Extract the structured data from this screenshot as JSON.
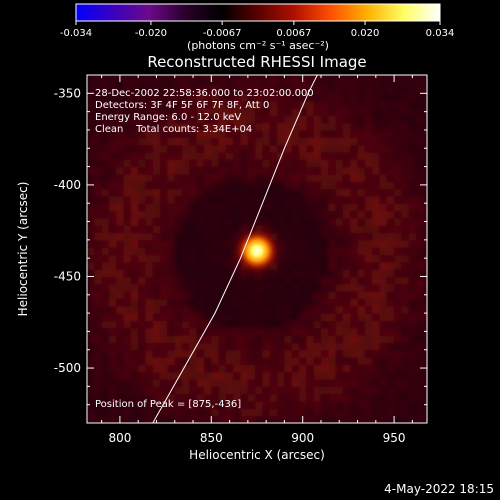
{
  "chart_data": {
    "type": "heatmap",
    "title": "Reconstructed RHESSI Image",
    "xlabel": "Heliocentric X (arcsec)",
    "ylabel": "Heliocentric Y (arcsec)",
    "xlim": [
      782,
      968
    ],
    "ylim": [
      -530,
      -340
    ],
    "xticks": [
      800,
      850,
      900,
      950
    ],
    "yticks": [
      -350,
      -400,
      -450,
      -500
    ],
    "colorbar": {
      "range": [
        -0.034,
        0.034
      ],
      "ticks": [
        "-0.034",
        "-0.020",
        "-0.0067",
        "0.0067",
        "0.020",
        "0.034"
      ],
      "label": "(photons cm⁻² s⁻¹ asec⁻²)",
      "colors": [
        "#0000ff",
        "#3a00c0",
        "#6a0a8a",
        "#2a002a",
        "#000000",
        "#5a0000",
        "#b01000",
        "#ff5000",
        "#ffb000",
        "#ffff60",
        "#ffffff"
      ]
    },
    "annotations": {
      "time": "28-Dec-2002 22:58:36.000 to 23:02:00.000",
      "detectors": "Detectors: 3F 4F 5F 6F 7F 8F, Att 0",
      "energy": "Energy Range: 6.0 - 12.0 keV",
      "clean": "Clean    Total counts: 3.34E+04",
      "peak": "Position of Peak = [875,-436]"
    },
    "peak": {
      "x": 875,
      "y": -436
    },
    "limb_curve": [
      [
        818,
        -530
      ],
      [
        835,
        -500
      ],
      [
        852,
        -470
      ],
      [
        866,
        -440
      ],
      [
        878,
        -410
      ],
      [
        890,
        -380
      ],
      [
        903,
        -350
      ],
      [
        908,
        -340
      ]
    ],
    "ring": {
      "cx": 872,
      "cy": -438,
      "r": 70
    },
    "grid": false
  },
  "footer": {
    "timestamp": "4-May-2022 18:15"
  }
}
